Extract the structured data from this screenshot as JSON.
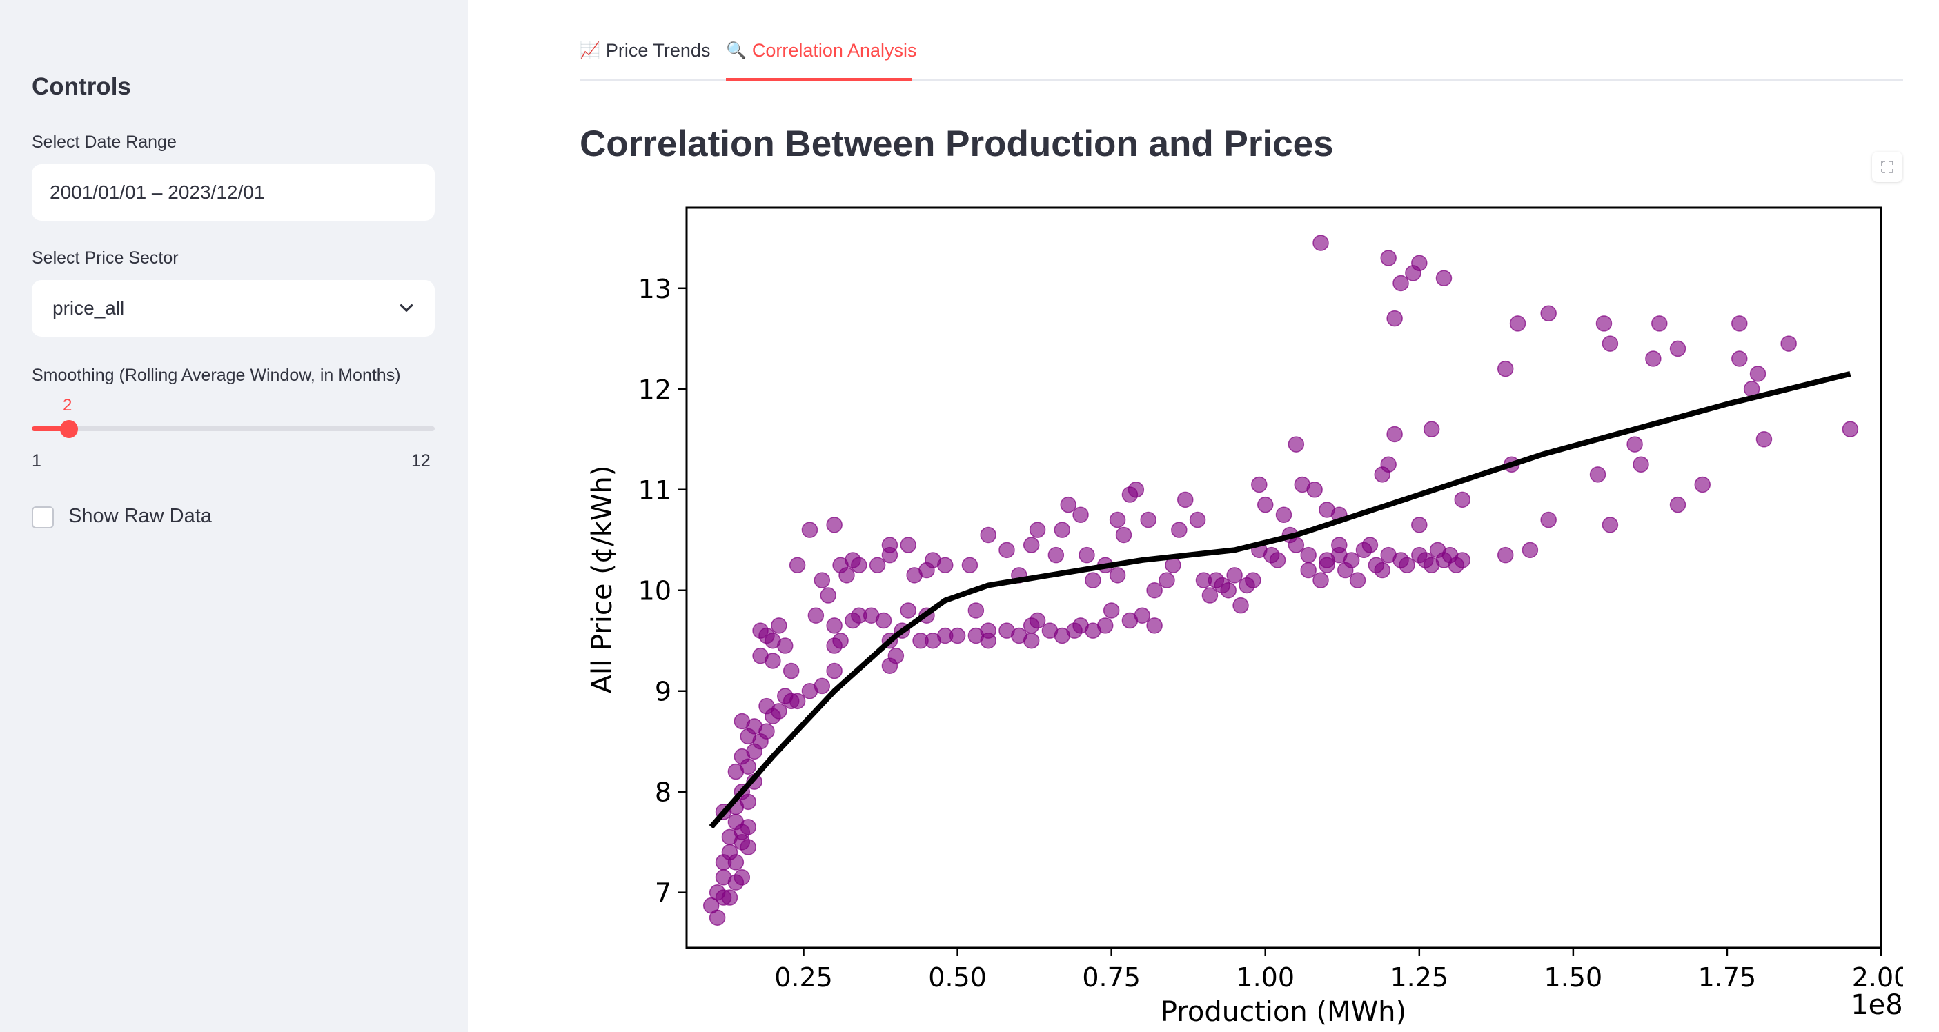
{
  "sidebar": {
    "title": "Controls",
    "date_range_label": "Select Date Range",
    "date_range_value": "2001/01/01 – 2023/12/01",
    "sector_label": "Select Price Sector",
    "sector_value": "price_all",
    "smoothing_label": "Smoothing (Rolling Average Window, in Months)",
    "smoothing_value": "2",
    "smoothing_min": "1",
    "smoothing_max": "12",
    "raw_data_label": "Show Raw Data"
  },
  "tabs": [
    {
      "icon": "📈",
      "label": "Price Trends",
      "active": false
    },
    {
      "icon": "🔍",
      "label": "Correlation Analysis",
      "active": true
    }
  ],
  "page_title": "Correlation Between Production and Prices",
  "colors": {
    "accent": "#ff4b4b",
    "point": "#800080",
    "trend": "#000000",
    "sidebar_bg": "#f0f2f6"
  },
  "chart_data": {
    "type": "scatter",
    "xlabel": "Production (MWh)",
    "ylabel": "All Price (¢/kWh)",
    "x_offset_label": "1e8",
    "xlim": [
      0.06,
      2.0
    ],
    "ylim": [
      6.45,
      13.8
    ],
    "x_ticks": [
      0.25,
      0.5,
      0.75,
      1.0,
      1.25,
      1.5,
      1.75,
      2.0
    ],
    "x_tick_labels": [
      "0.25",
      "0.50",
      "0.75",
      "1.00",
      "1.25",
      "1.50",
      "1.75",
      "2.00"
    ],
    "y_ticks": [
      7,
      8,
      9,
      10,
      11,
      12,
      13
    ],
    "y_tick_labels": [
      "7",
      "8",
      "9",
      "10",
      "11",
      "12",
      "13"
    ],
    "grid": false,
    "series": [
      {
        "kind": "points",
        "points": [
          [
            0.11,
            6.75
          ],
          [
            0.1,
            6.87
          ],
          [
            0.11,
            7.0
          ],
          [
            0.12,
            6.95
          ],
          [
            0.13,
            6.95
          ],
          [
            0.12,
            7.15
          ],
          [
            0.14,
            7.1
          ],
          [
            0.15,
            7.15
          ],
          [
            0.12,
            7.3
          ],
          [
            0.14,
            7.3
          ],
          [
            0.13,
            7.4
          ],
          [
            0.15,
            7.5
          ],
          [
            0.16,
            7.45
          ],
          [
            0.13,
            7.55
          ],
          [
            0.15,
            7.6
          ],
          [
            0.14,
            7.7
          ],
          [
            0.16,
            7.65
          ],
          [
            0.12,
            7.8
          ],
          [
            0.14,
            7.85
          ],
          [
            0.16,
            7.9
          ],
          [
            0.15,
            8.0
          ],
          [
            0.17,
            8.1
          ],
          [
            0.14,
            8.2
          ],
          [
            0.16,
            8.25
          ],
          [
            0.15,
            8.35
          ],
          [
            0.17,
            8.4
          ],
          [
            0.18,
            8.5
          ],
          [
            0.16,
            8.55
          ],
          [
            0.19,
            8.6
          ],
          [
            0.15,
            8.7
          ],
          [
            0.17,
            8.65
          ],
          [
            0.2,
            8.75
          ],
          [
            0.19,
            8.85
          ],
          [
            0.21,
            8.8
          ],
          [
            0.22,
            8.95
          ],
          [
            0.23,
            8.9
          ],
          [
            0.24,
            8.9
          ],
          [
            0.26,
            9.0
          ],
          [
            0.28,
            9.05
          ],
          [
            0.23,
            9.2
          ],
          [
            0.2,
            9.3
          ],
          [
            0.18,
            9.35
          ],
          [
            0.2,
            9.5
          ],
          [
            0.22,
            9.45
          ],
          [
            0.18,
            9.6
          ],
          [
            0.19,
            9.55
          ],
          [
            0.21,
            9.65
          ],
          [
            0.3,
            9.2
          ],
          [
            0.3,
            9.45
          ],
          [
            0.31,
            9.5
          ],
          [
            0.3,
            9.65
          ],
          [
            0.33,
            9.7
          ],
          [
            0.34,
            9.75
          ],
          [
            0.36,
            9.75
          ],
          [
            0.38,
            9.7
          ],
          [
            0.39,
            9.5
          ],
          [
            0.41,
            9.6
          ],
          [
            0.4,
            9.35
          ],
          [
            0.39,
            9.25
          ],
          [
            0.42,
            9.8
          ],
          [
            0.45,
            9.75
          ],
          [
            0.44,
            9.5
          ],
          [
            0.46,
            9.5
          ],
          [
            0.48,
            9.55
          ],
          [
            0.5,
            9.55
          ],
          [
            0.53,
            9.55
          ],
          [
            0.55,
            9.5
          ],
          [
            0.55,
            9.6
          ],
          [
            0.53,
            9.8
          ],
          [
            0.58,
            9.6
          ],
          [
            0.6,
            9.55
          ],
          [
            0.62,
            9.5
          ],
          [
            0.62,
            9.65
          ],
          [
            0.63,
            9.7
          ],
          [
            0.65,
            9.6
          ],
          [
            0.67,
            9.55
          ],
          [
            0.69,
            9.6
          ],
          [
            0.7,
            9.65
          ],
          [
            0.72,
            9.6
          ],
          [
            0.74,
            9.65
          ],
          [
            0.75,
            9.8
          ],
          [
            0.78,
            9.7
          ],
          [
            0.8,
            9.75
          ],
          [
            0.82,
            9.65
          ],
          [
            0.27,
            9.75
          ],
          [
            0.29,
            9.95
          ],
          [
            0.28,
            10.1
          ],
          [
            0.31,
            10.25
          ],
          [
            0.32,
            10.15
          ],
          [
            0.34,
            10.25
          ],
          [
            0.37,
            10.25
          ],
          [
            0.39,
            10.35
          ],
          [
            0.39,
            10.45
          ],
          [
            0.42,
            10.45
          ],
          [
            0.43,
            10.15
          ],
          [
            0.45,
            10.2
          ],
          [
            0.46,
            10.3
          ],
          [
            0.48,
            10.25
          ],
          [
            0.33,
            10.3
          ],
          [
            0.24,
            10.25
          ],
          [
            0.26,
            10.6
          ],
          [
            0.3,
            10.65
          ],
          [
            0.52,
            10.25
          ],
          [
            0.55,
            10.55
          ],
          [
            0.58,
            10.4
          ],
          [
            0.6,
            10.15
          ],
          [
            0.62,
            10.45
          ],
          [
            0.63,
            10.6
          ],
          [
            0.66,
            10.35
          ],
          [
            0.67,
            10.6
          ],
          [
            0.68,
            10.85
          ],
          [
            0.7,
            10.75
          ],
          [
            0.71,
            10.35
          ],
          [
            0.72,
            10.1
          ],
          [
            0.74,
            10.25
          ],
          [
            0.76,
            10.15
          ],
          [
            0.76,
            10.7
          ],
          [
            0.77,
            10.55
          ],
          [
            0.78,
            10.95
          ],
          [
            0.79,
            11.0
          ],
          [
            0.81,
            10.7
          ],
          [
            0.82,
            10.0
          ],
          [
            0.84,
            10.1
          ],
          [
            0.85,
            10.25
          ],
          [
            0.86,
            10.6
          ],
          [
            0.87,
            10.9
          ],
          [
            0.89,
            10.7
          ],
          [
            0.9,
            10.1
          ],
          [
            0.91,
            9.95
          ],
          [
            0.92,
            10.1
          ],
          [
            0.93,
            10.05
          ],
          [
            0.94,
            10.0
          ],
          [
            0.95,
            10.15
          ],
          [
            0.96,
            9.85
          ],
          [
            0.97,
            10.05
          ],
          [
            0.98,
            10.1
          ],
          [
            0.99,
            11.05
          ],
          [
            1.0,
            10.85
          ],
          [
            0.99,
            10.4
          ],
          [
            1.01,
            10.35
          ],
          [
            1.02,
            10.3
          ],
          [
            1.03,
            10.75
          ],
          [
            1.04,
            10.55
          ],
          [
            1.05,
            10.45
          ],
          [
            1.06,
            11.05
          ],
          [
            1.07,
            10.35
          ],
          [
            1.07,
            10.2
          ],
          [
            1.08,
            11.0
          ],
          [
            1.09,
            10.1
          ],
          [
            1.1,
            10.3
          ],
          [
            1.1,
            10.25
          ],
          [
            1.12,
            10.35
          ],
          [
            1.12,
            10.45
          ],
          [
            1.13,
            10.2
          ],
          [
            1.14,
            10.3
          ],
          [
            1.15,
            10.1
          ],
          [
            1.16,
            10.4
          ],
          [
            1.17,
            10.45
          ],
          [
            1.18,
            10.25
          ],
          [
            1.19,
            10.2
          ],
          [
            1.2,
            10.35
          ],
          [
            1.22,
            10.3
          ],
          [
            1.23,
            10.25
          ],
          [
            1.25,
            10.35
          ],
          [
            1.26,
            10.3
          ],
          [
            1.27,
            10.25
          ],
          [
            1.28,
            10.4
          ],
          [
            1.29,
            10.3
          ],
          [
            1.3,
            10.35
          ],
          [
            1.31,
            10.25
          ],
          [
            1.32,
            10.3
          ],
          [
            1.05,
            11.45
          ],
          [
            1.1,
            10.8
          ],
          [
            1.12,
            10.75
          ],
          [
            1.19,
            11.15
          ],
          [
            1.2,
            11.25
          ],
          [
            1.21,
            11.55
          ],
          [
            1.25,
            10.65
          ],
          [
            1.27,
            11.6
          ],
          [
            1.32,
            10.9
          ],
          [
            1.39,
            10.35
          ],
          [
            1.4,
            11.25
          ],
          [
            1.43,
            10.4
          ],
          [
            1.46,
            10.7
          ],
          [
            1.54,
            11.15
          ],
          [
            1.56,
            10.65
          ],
          [
            1.6,
            11.45
          ],
          [
            1.61,
            11.25
          ],
          [
            1.67,
            10.85
          ],
          [
            1.71,
            11.05
          ],
          [
            1.81,
            11.5
          ],
          [
            1.95,
            11.6
          ],
          [
            1.09,
            13.45
          ],
          [
            1.2,
            13.3
          ],
          [
            1.22,
            13.05
          ],
          [
            1.24,
            13.15
          ],
          [
            1.25,
            13.25
          ],
          [
            1.29,
            13.1
          ],
          [
            1.21,
            12.7
          ],
          [
            1.39,
            12.2
          ],
          [
            1.41,
            12.65
          ],
          [
            1.46,
            12.75
          ],
          [
            1.55,
            12.65
          ],
          [
            1.56,
            12.45
          ],
          [
            1.63,
            12.3
          ],
          [
            1.64,
            12.65
          ],
          [
            1.67,
            12.4
          ],
          [
            1.77,
            12.65
          ],
          [
            1.77,
            12.3
          ],
          [
            1.79,
            12.0
          ],
          [
            1.8,
            12.15
          ],
          [
            1.85,
            12.45
          ]
        ]
      },
      {
        "kind": "trend_line",
        "points": [
          [
            0.1,
            7.65
          ],
          [
            0.2,
            8.35
          ],
          [
            0.3,
            9.0
          ],
          [
            0.4,
            9.55
          ],
          [
            0.48,
            9.9
          ],
          [
            0.55,
            10.05
          ],
          [
            0.65,
            10.15
          ],
          [
            0.8,
            10.3
          ],
          [
            0.95,
            10.4
          ],
          [
            1.05,
            10.55
          ],
          [
            1.15,
            10.75
          ],
          [
            1.3,
            11.05
          ],
          [
            1.45,
            11.35
          ],
          [
            1.6,
            11.6
          ],
          [
            1.75,
            11.85
          ],
          [
            1.95,
            12.15
          ]
        ]
      }
    ]
  }
}
